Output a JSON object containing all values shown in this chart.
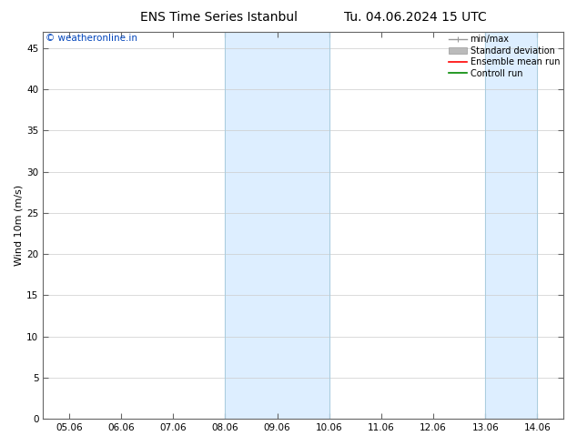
{
  "title_left": "ENS Time Series Istanbul",
  "title_right": "Tu. 04.06.2024 15 UTC",
  "ylabel": "Wind 10m (m/s)",
  "ylim": [
    0,
    47
  ],
  "yticks": [
    0,
    5,
    10,
    15,
    20,
    25,
    30,
    35,
    40,
    45
  ],
  "xtick_labels": [
    "05.06",
    "06.06",
    "07.06",
    "08.06",
    "09.06",
    "10.06",
    "11.06",
    "12.06",
    "13.06",
    "14.06"
  ],
  "shaded_bands": [
    {
      "xmin": 3.0,
      "xmax": 5.0
    },
    {
      "xmin": 8.0,
      "xmax": 9.0
    }
  ],
  "shade_color": "#ddeeff",
  "band_edge_color": "#aaccdd",
  "watermark_text": "© weatheronline.in",
  "watermark_color": "#0044bb",
  "legend_labels": [
    "min/max",
    "Standard deviation",
    "Ensemble mean run",
    "Controll run"
  ],
  "legend_colors": [
    "#999999",
    "#bbbbbb",
    "#ff0000",
    "#008800"
  ],
  "bg_color": "#ffffff",
  "grid_color": "#cccccc",
  "title_fontsize": 10,
  "ylabel_fontsize": 8,
  "tick_fontsize": 7.5,
  "legend_fontsize": 7,
  "watermark_fontsize": 7.5
}
